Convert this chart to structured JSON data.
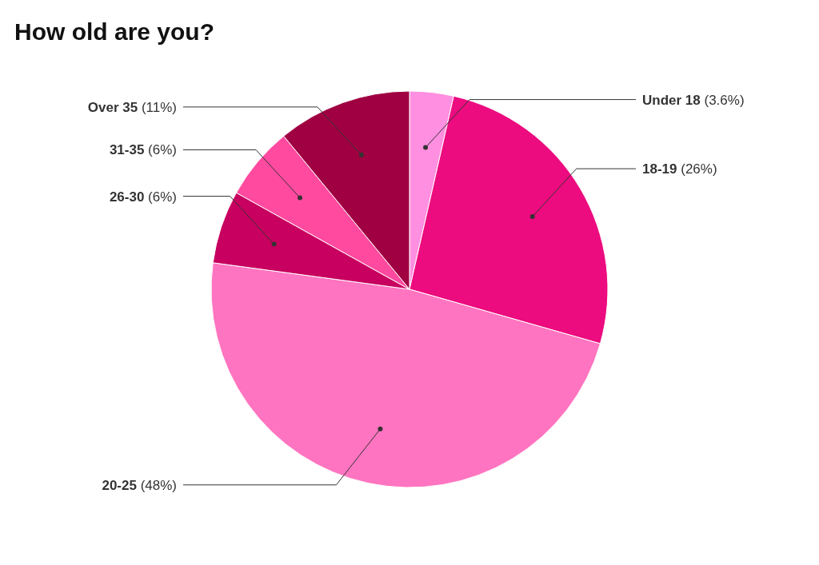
{
  "chart_data": {
    "type": "pie",
    "title": "How old are you?",
    "categories": [
      "Under 18",
      "18-19",
      "20-25",
      "26-30",
      "31-35",
      "Over 35"
    ],
    "values": [
      3.6,
      26,
      48,
      6,
      6,
      11
    ],
    "value_labels": [
      "(3.6%)",
      "(26%)",
      "(48%)",
      "(6%)",
      "(6%)",
      "(11%)"
    ],
    "colors": [
      "#ff8fe0",
      "#ec0c7f",
      "#ff74c0",
      "#c8005f",
      "#ff4aa0",
      "#a00042"
    ]
  }
}
